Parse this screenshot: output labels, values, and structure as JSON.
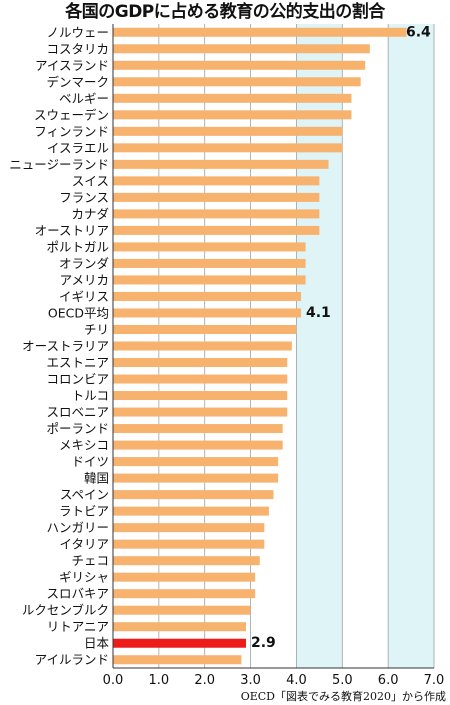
{
  "chart_data": {
    "type": "bar",
    "orientation": "horizontal",
    "title": "各国のGDPに占める教育の公的支出の割合",
    "categories": [
      "ノルウェー",
      "コスタリカ",
      "アイスランド",
      "デンマーク",
      "ベルギー",
      "スウェーデン",
      "フィンランド",
      "イスラエル",
      "ニュージーランド",
      "スイス",
      "フランス",
      "カナダ",
      "オーストリア",
      "ポルトガル",
      "オランダ",
      "アメリカ",
      "イギリス",
      "OECD平均",
      "チリ",
      "オーストラリア",
      "エストニア",
      "コロンビア",
      "トルコ",
      "スロベニア",
      "ポーランド",
      "メキシコ",
      "ドイツ",
      "韓国",
      "スペイン",
      "ラトビア",
      "ハンガリー",
      "イタリア",
      "チェコ",
      "ギリシャ",
      "スロバキア",
      "ルクセンブルク",
      "リトアニア",
      "日本",
      "アイルランド"
    ],
    "values": [
      6.4,
      5.6,
      5.5,
      5.4,
      5.2,
      5.2,
      5.0,
      5.0,
      4.7,
      4.5,
      4.5,
      4.5,
      4.5,
      4.2,
      4.2,
      4.2,
      4.1,
      4.1,
      4.0,
      3.9,
      3.8,
      3.8,
      3.8,
      3.8,
      3.7,
      3.7,
      3.6,
      3.6,
      3.5,
      3.4,
      3.3,
      3.3,
      3.2,
      3.1,
      3.1,
      3.0,
      2.9,
      2.9,
      2.8
    ],
    "data_labels": [
      {
        "category": "ノルウェー",
        "text": "6.4"
      },
      {
        "category": "OECD平均",
        "text": "4.1"
      },
      {
        "category": "日本",
        "text": "2.9"
      }
    ],
    "highlight_category": "日本",
    "xlim": [
      0,
      7
    ],
    "xticks": [
      "0.0",
      "1.0",
      "2.0",
      "3.0",
      "4.0",
      "5.0",
      "6.0",
      "7.0"
    ],
    "shaded_bands": [
      [
        4,
        5
      ],
      [
        6,
        7
      ]
    ],
    "colors": {
      "bar": "#f7b26d",
      "highlight": "#ee1b1b",
      "band": "#dff4f7",
      "grid": "#9aa3a6"
    },
    "source": "OECD「図表でみる教育2020」から作成"
  }
}
